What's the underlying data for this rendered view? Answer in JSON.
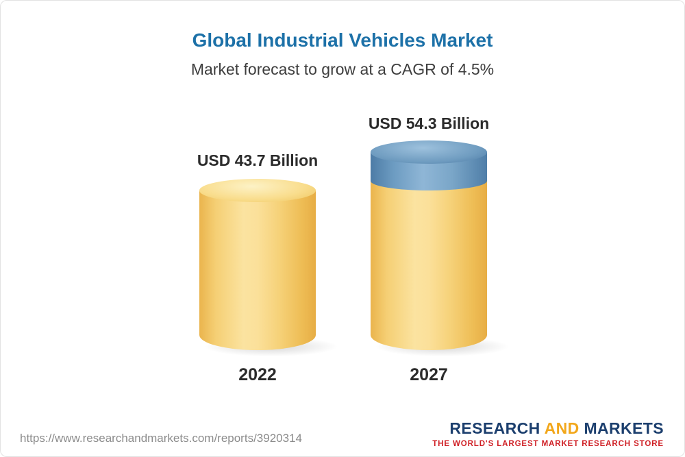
{
  "chart_data": {
    "type": "bar",
    "title": "Global Industrial Vehicles Market",
    "subtitle": "Market forecast to grow at a CAGR of 4.5%",
    "cagr_percent": 4.5,
    "unit": "USD Billion",
    "categories": [
      "2022",
      "2027"
    ],
    "values": [
      43.7,
      54.3
    ],
    "value_labels": [
      "USD 43.7 Billion",
      "USD 54.3 Billion"
    ],
    "legend_position": "none",
    "grid": false,
    "colors": {
      "title_accent": "#1d71a8",
      "bar_base": "#f6d27a",
      "bar_growth_segment": "#6f9cc0",
      "label_text": "#2b2b2b"
    }
  },
  "footer": {
    "url": "https://www.researchandmarkets.com/reports/3920314",
    "logo": {
      "word1": "RESEARCH",
      "word2": "AND",
      "word3": "MARKETS",
      "tagline": "THE WORLD'S LARGEST MARKET RESEARCH STORE",
      "colors": {
        "navy": "#1c3f6e",
        "gold": "#f2a71b",
        "tagline_red": "#cf1f25"
      }
    }
  }
}
